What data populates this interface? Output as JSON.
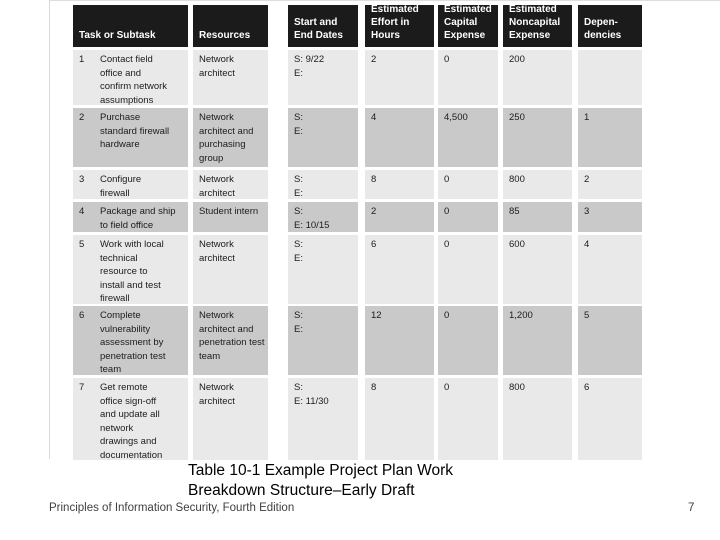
{
  "slide": {
    "caption_line1": "Table 10-1 Example Project Plan Work",
    "caption_line2": "Breakdown Structure–Early Draft",
    "footer_left": "Principles of Information Security, Fourth Edition",
    "page_number": "7"
  },
  "table": {
    "colors": {
      "header_bg": "#1b1b1b",
      "header_text": "#ffffff",
      "row_light": "#e9e9e9",
      "row_dark": "#c9c9c9"
    },
    "columns": [
      {
        "key": "task",
        "label": "Task or Subtask"
      },
      {
        "key": "resources",
        "label": "Resources"
      },
      {
        "key": "dates",
        "label": "Start and\nEnd Dates"
      },
      {
        "key": "effort",
        "label": "Estimated\nEffort in\nHours"
      },
      {
        "key": "capital",
        "label": "Estimated\nCapital\nExpense"
      },
      {
        "key": "noncapital",
        "label": "Estimated\nNoncapital\nExpense"
      },
      {
        "key": "dependencies",
        "label": "Depen-\ndencies"
      }
    ],
    "rows": [
      {
        "num": "1",
        "task": "Contact field\noffice and\nconfirm network\nassumptions",
        "resources": "Network\narchitect",
        "dates": "S: 9/22\nE:",
        "effort": "2",
        "capital": "0",
        "noncapital": "200",
        "dependencies": ""
      },
      {
        "num": "2",
        "task": "Purchase\nstandard firewall\nhardware",
        "resources": "Network\narchitect and\npurchasing\ngroup",
        "dates": "S:\nE:",
        "effort": "4",
        "capital": "4,500",
        "noncapital": "250",
        "dependencies": "1"
      },
      {
        "num": "3",
        "task": "Configure\nfirewall",
        "resources": "Network\narchitect",
        "dates": "S:\nE:",
        "effort": "8",
        "capital": "0",
        "noncapital": "800",
        "dependencies": "2"
      },
      {
        "num": "4",
        "task": "Package and ship\nto field office",
        "resources": "Student intern",
        "dates": "S:\nE: 10/15",
        "effort": "2",
        "capital": "0",
        "noncapital": "85",
        "dependencies": "3"
      },
      {
        "num": "5",
        "task": "Work with local\ntechnical\nresource to\ninstall and test\nfirewall",
        "resources": "Network\narchitect",
        "dates": "S:\nE:",
        "effort": "6",
        "capital": "0",
        "noncapital": "600",
        "dependencies": "4"
      },
      {
        "num": "6",
        "task": "Complete\nvulnerability\nassessment by\npenetration test\nteam",
        "resources": "Network\narchitect and\npenetration test\nteam",
        "dates": "S:\nE:",
        "effort": "12",
        "capital": "0",
        "noncapital": "1,200",
        "dependencies": "5"
      },
      {
        "num": "7",
        "task": "Get remote\noffice sign-off\nand update all\nnetwork\ndrawings and\ndocumentation",
        "resources": "Network\narchitect",
        "dates": "S:\nE: 11/30",
        "effort": "8",
        "capital": "0",
        "noncapital": "800",
        "dependencies": "6"
      }
    ]
  }
}
